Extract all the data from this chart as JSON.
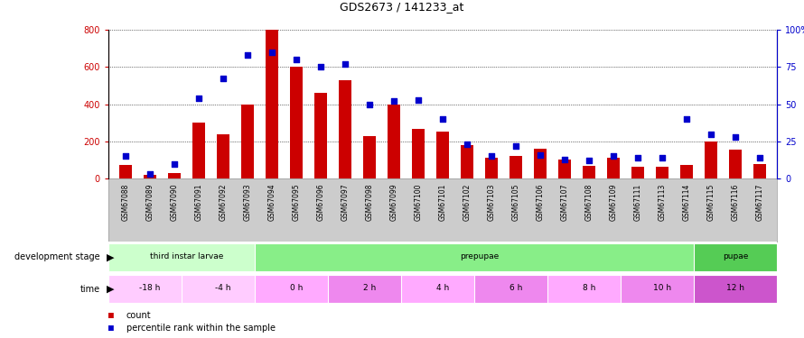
{
  "title": "GDS2673 / 141233_at",
  "samples": [
    "GSM67088",
    "GSM67089",
    "GSM67090",
    "GSM67091",
    "GSM67092",
    "GSM67093",
    "GSM67094",
    "GSM67095",
    "GSM67096",
    "GSM67097",
    "GSM67098",
    "GSM67099",
    "GSM67100",
    "GSM67101",
    "GSM67102",
    "GSM67103",
    "GSM67105",
    "GSM67106",
    "GSM67107",
    "GSM67108",
    "GSM67109",
    "GSM67111",
    "GSM67113",
    "GSM67114",
    "GSM67115",
    "GSM67116",
    "GSM67117"
  ],
  "counts": [
    75,
    20,
    30,
    300,
    240,
    400,
    800,
    600,
    460,
    530,
    230,
    400,
    265,
    250,
    180,
    110,
    120,
    160,
    100,
    70,
    110,
    65,
    65,
    75,
    200,
    155,
    80
  ],
  "percentiles": [
    15,
    3,
    10,
    54,
    67,
    83,
    85,
    80,
    75,
    77,
    50,
    52,
    53,
    40,
    23,
    15,
    22,
    16,
    13,
    12,
    15,
    14,
    14,
    40,
    30,
    28,
    14
  ],
  "count_color": "#cc0000",
  "percentile_color": "#0000cc",
  "ylim_left": [
    0,
    800
  ],
  "ylim_right": [
    0,
    100
  ],
  "yticks_left": [
    0,
    200,
    400,
    600,
    800
  ],
  "yticks_right": [
    0,
    25,
    50,
    75,
    100
  ],
  "yticklabels_right": [
    "0",
    "25",
    "50",
    "75",
    "100%"
  ],
  "background_color": "#ffffff",
  "xlabel_bg": "#cccccc",
  "dev_stage_row": {
    "label": "development stage",
    "stages": [
      {
        "name": "third instar larvae",
        "color": "#ccffcc",
        "start": 0,
        "end": 6
      },
      {
        "name": "prepupae",
        "color": "#88ee88",
        "start": 6,
        "end": 24
      },
      {
        "name": "pupae",
        "color": "#55cc55",
        "start": 24,
        "end": 27
      }
    ]
  },
  "time_row": {
    "label": "time",
    "times": [
      {
        "name": "-18 h",
        "color": "#ffccff",
        "start": 0,
        "end": 3
      },
      {
        "name": "-4 h",
        "color": "#ffccff",
        "start": 3,
        "end": 6
      },
      {
        "name": "0 h",
        "color": "#ffaaff",
        "start": 6,
        "end": 9
      },
      {
        "name": "2 h",
        "color": "#ee88ee",
        "start": 9,
        "end": 12
      },
      {
        "name": "4 h",
        "color": "#ffaaff",
        "start": 12,
        "end": 15
      },
      {
        "name": "6 h",
        "color": "#ee88ee",
        "start": 15,
        "end": 18
      },
      {
        "name": "8 h",
        "color": "#ffaaff",
        "start": 18,
        "end": 21
      },
      {
        "name": "10 h",
        "color": "#ee88ee",
        "start": 21,
        "end": 24
      },
      {
        "name": "12 h",
        "color": "#cc55cc",
        "start": 24,
        "end": 27
      }
    ]
  },
  "bar_width": 0.5
}
